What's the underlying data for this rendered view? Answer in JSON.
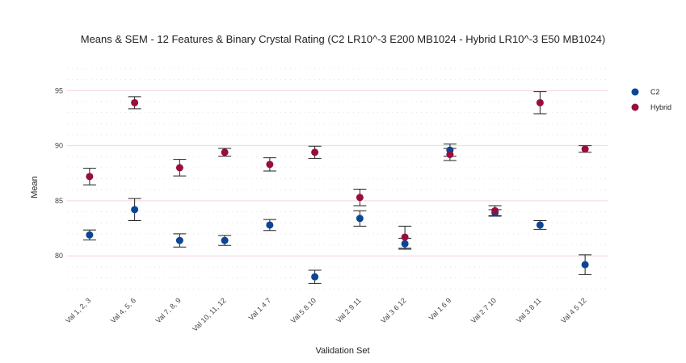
{
  "chart_data": {
    "type": "scatter",
    "title": "Means & SEM - 12 Features & Binary Crystal Rating (C2 LR10^-3 E200 MB1024 - Hybrid LR10^-3 E50 MB1024)",
    "xlabel": "Validation Set",
    "ylabel": "Mean",
    "categories": [
      "Val 1, 2, 3",
      "Val 4, 5, 6",
      "Val 7, 8, 9",
      "Val 10, 11, 12",
      "Val 1 4 7",
      "Val 5 8 10",
      "Val 2 9 11",
      "Val 3 6 12",
      "Val 1 6 9",
      "Val 2 7 10",
      "Val 3 8 11",
      "Val 4 5 12"
    ],
    "yticks": [
      80,
      85,
      90,
      95
    ],
    "ylim": [
      76.5,
      97
    ],
    "grid": true,
    "legend_position": "top-right",
    "series": [
      {
        "name": "C2",
        "color": "#0b4596",
        "values": [
          81.9,
          84.2,
          81.4,
          81.4,
          82.8,
          78.1,
          83.4,
          81.1,
          89.6,
          83.9,
          82.8,
          79.2
        ],
        "sem": [
          0.45,
          1.0,
          0.6,
          0.45,
          0.5,
          0.6,
          0.7,
          0.5,
          0.55,
          0.3,
          0.4,
          0.9
        ]
      },
      {
        "name": "Hybrid",
        "color": "#990d3e",
        "values": [
          87.2,
          93.9,
          88.0,
          89.4,
          88.3,
          89.4,
          85.3,
          81.7,
          89.2,
          84.1,
          93.9,
          89.7
        ],
        "sem": [
          0.75,
          0.55,
          0.75,
          0.35,
          0.6,
          0.55,
          0.75,
          1.0,
          0.55,
          0.45,
          1.0,
          0.3
        ]
      }
    ]
  }
}
